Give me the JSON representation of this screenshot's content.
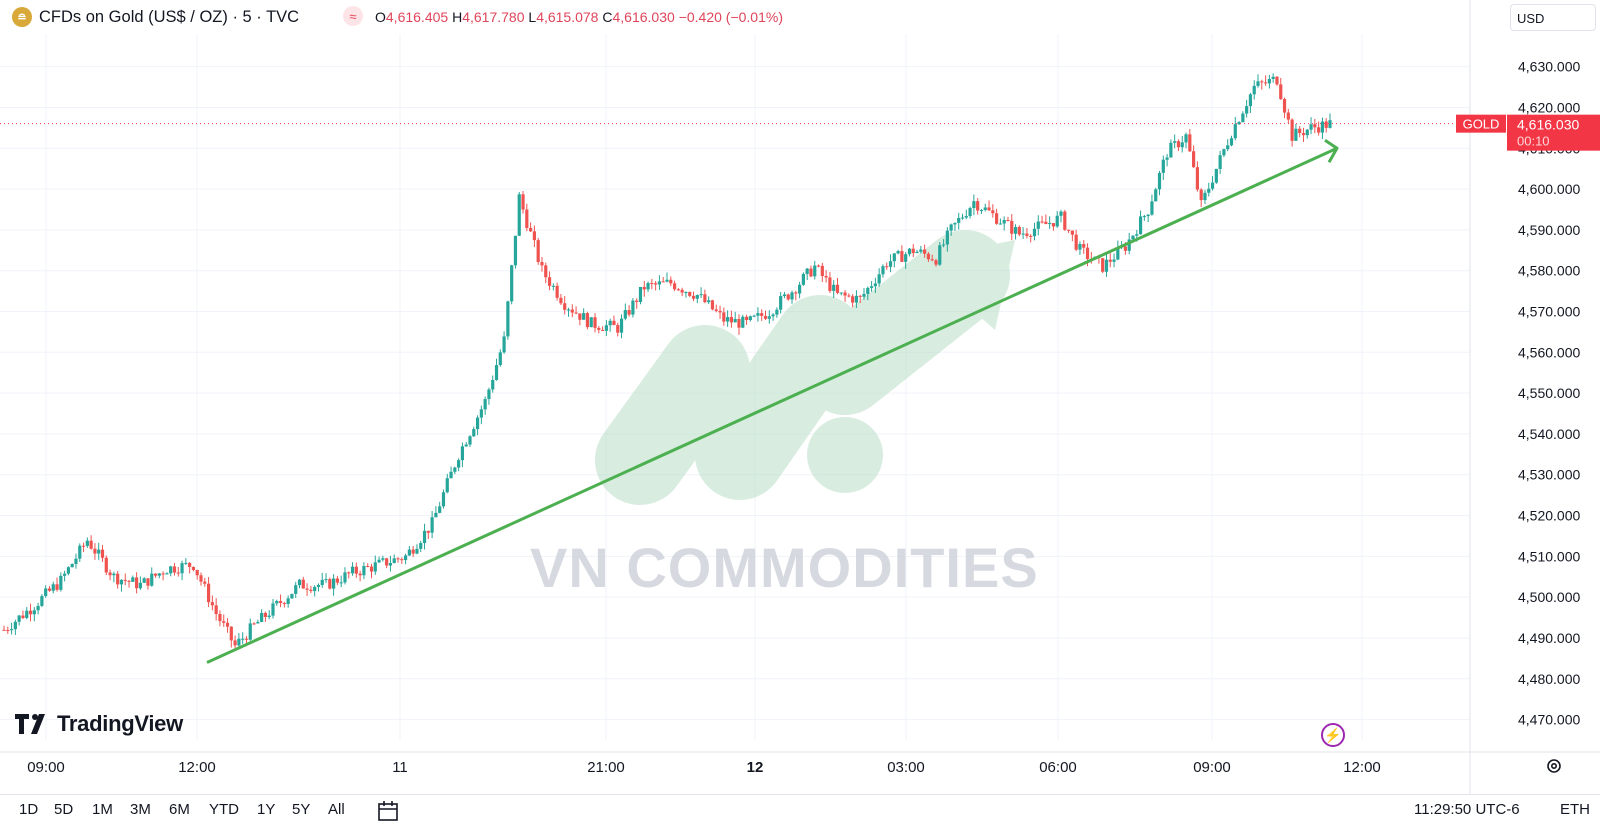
{
  "header": {
    "symbol_icon_name": "gold-bar-icon",
    "title": "CFDs on Gold (US$ / OZ) · 5 · TVC",
    "wave_icon_name": "approx-icon",
    "o_label": "O",
    "o_value": "4,616.405",
    "h_label": "H",
    "h_value": "4,617.780",
    "l_label": "L",
    "l_value": "4,615.078",
    "c_label": "C",
    "c_value": "4,616.030",
    "change": "−0.420 (−0.01%)",
    "currency": "USD"
  },
  "price_tag": {
    "symbol": "GOLD",
    "price": "4,616.030",
    "countdown": "00:10"
  },
  "watermark_text": "VN COMMODITIES",
  "logo_text": "TradingView",
  "bottom": {
    "timeframes": [
      "1D",
      "5D",
      "1M",
      "3M",
      "6M",
      "YTD",
      "1Y",
      "5Y",
      "All"
    ],
    "clock": "11:29:50 UTC-6",
    "session": "ETH"
  },
  "colors": {
    "up": "#26a69a",
    "down": "#ef5350",
    "trend": "#4caf50",
    "tag": "#f23645"
  },
  "chart_data": {
    "type": "candlestick",
    "ylim": [
      4465,
      4638
    ],
    "yticks": [
      "4,470.000",
      "4,480.000",
      "4,490.000",
      "4,500.000",
      "4,510.000",
      "4,520.000",
      "4,530.000",
      "4,540.000",
      "4,550.000",
      "4,560.000",
      "4,570.000",
      "4,580.000",
      "4,590.000",
      "4,600.000",
      "4,610.000",
      "4,620.000",
      "4,630.000"
    ],
    "xticks": [
      "09:00",
      "12:00",
      "11",
      "21:00",
      "12",
      "03:00",
      "06:00",
      "09:00",
      "12:00"
    ],
    "close_path": [
      [
        0,
        4492
      ],
      [
        8,
        4498
      ],
      [
        15,
        4504
      ],
      [
        22,
        4514
      ],
      [
        29,
        4505
      ],
      [
        36,
        4503
      ],
      [
        43,
        4507
      ],
      [
        50,
        4508
      ],
      [
        56,
        4496
      ],
      [
        61,
        4488
      ],
      [
        66,
        4493
      ],
      [
        72,
        4498
      ],
      [
        78,
        4503
      ],
      [
        85,
        4503
      ],
      [
        92,
        4506
      ],
      [
        99,
        4508
      ],
      [
        106,
        4510
      ],
      [
        113,
        4518
      ],
      [
        120,
        4535
      ],
      [
        127,
        4548
      ],
      [
        132,
        4563
      ],
      [
        136,
        4598
      ],
      [
        142,
        4580
      ],
      [
        148,
        4572
      ],
      [
        155,
        4567
      ],
      [
        162,
        4566
      ],
      [
        169,
        4576
      ],
      [
        176,
        4577
      ],
      [
        183,
        4574
      ],
      [
        190,
        4568
      ],
      [
        196,
        4567
      ],
      [
        202,
        4570
      ],
      [
        208,
        4575
      ],
      [
        214,
        4581
      ],
      [
        220,
        4574
      ],
      [
        226,
        4573
      ],
      [
        233,
        4582
      ],
      [
        240,
        4585
      ],
      [
        246,
        4583
      ],
      [
        250,
        4590
      ],
      [
        256,
        4597
      ],
      [
        262,
        4593
      ],
      [
        268,
        4589
      ],
      [
        274,
        4591
      ],
      [
        279,
        4593
      ],
      [
        284,
        4585
      ],
      [
        290,
        4581
      ],
      [
        296,
        4586
      ],
      [
        302,
        4595
      ],
      [
        307,
        4609
      ],
      [
        312,
        4613
      ],
      [
        316,
        4596
      ],
      [
        320,
        4605
      ],
      [
        324,
        4614
      ],
      [
        330,
        4625
      ],
      [
        336,
        4627
      ],
      [
        340,
        4613
      ],
      [
        345,
        4615
      ],
      [
        350,
        4616
      ]
    ],
    "last_price": 4616.03,
    "trendline": [
      [
        4484,
        "12:00"
      ],
      [
        4610,
        "11:40"
      ]
    ]
  }
}
